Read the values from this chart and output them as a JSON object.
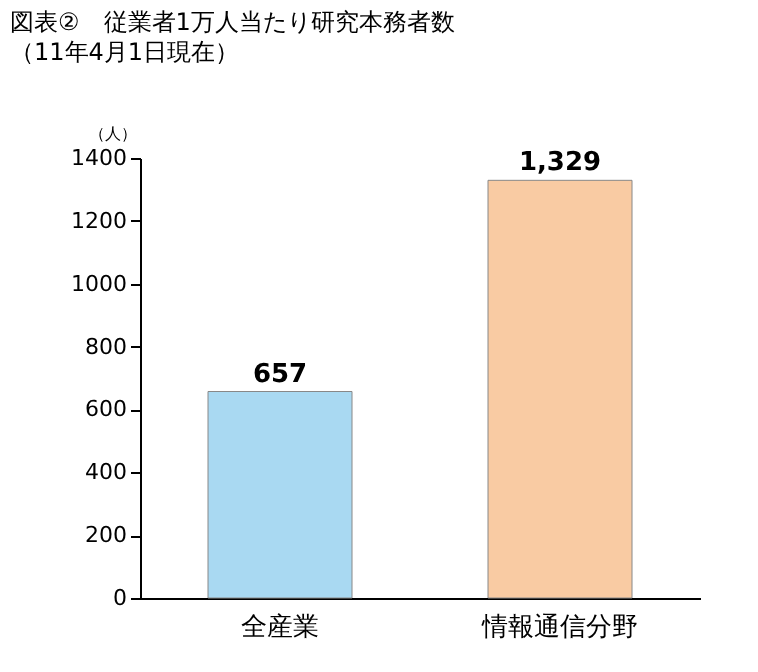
{
  "chart_data": {
    "type": "bar",
    "title": "図表②　従業者1万人当たり研究本務者数",
    "subtitle": "（11年4月1日現在）",
    "ylabel": "（人）",
    "categories": [
      "全産業",
      "情報通信分野"
    ],
    "values": [
      657,
      1329
    ],
    "colors": [
      "#a9d9f2",
      "#f9cba3"
    ],
    "ylim": [
      0,
      1400
    ],
    "yticks": [
      0,
      200,
      400,
      600,
      800,
      1000,
      1200,
      1400
    ],
    "value_labels": [
      "657",
      "1,329"
    ],
    "grid": false
  }
}
